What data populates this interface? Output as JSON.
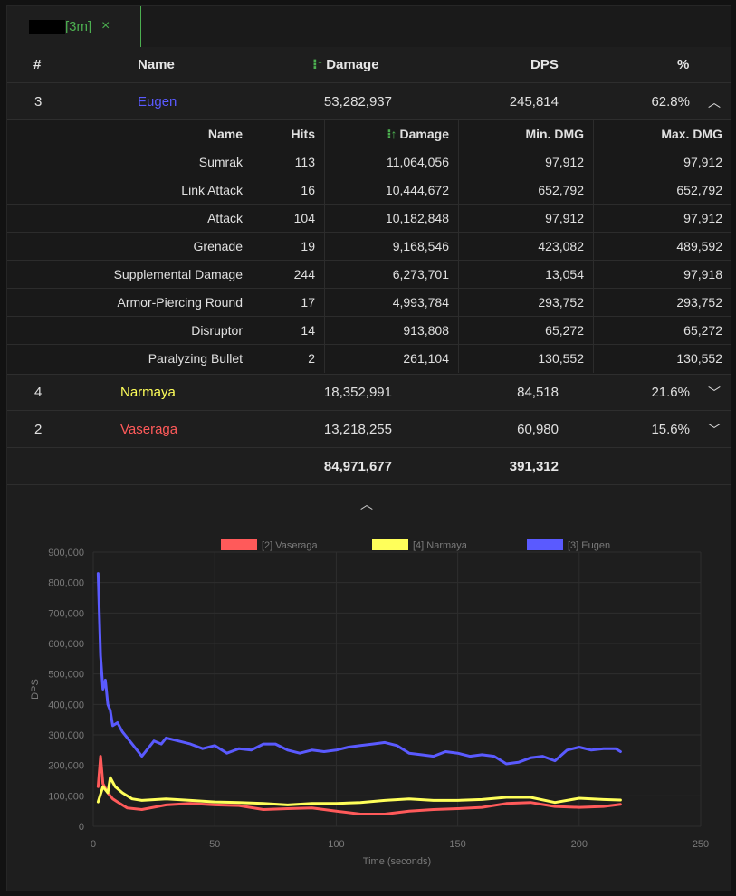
{
  "colors": {
    "accent": "#4caf50",
    "eugen": "#5a5aff",
    "narmaya": "#ffff5a",
    "vaseraga": "#ff5a5a"
  },
  "tab": {
    "label": "[3m]",
    "close_icon": "×"
  },
  "table": {
    "headers": {
      "rank": "#",
      "name": "Name",
      "damage": "Damage",
      "dps": "DPS",
      "percent": "%"
    },
    "sort_icon": "↑",
    "rows": [
      {
        "rank": "3",
        "name": "Eugen",
        "damage": "53,282,937",
        "dps": "245,814",
        "percent": "62.8%",
        "expanded": true
      },
      {
        "rank": "4",
        "name": "Narmaya",
        "damage": "18,352,991",
        "dps": "84,518",
        "percent": "21.6%",
        "expanded": false
      },
      {
        "rank": "2",
        "name": "Vaseraga",
        "damage": "13,218,255",
        "dps": "60,980",
        "percent": "15.6%",
        "expanded": false
      }
    ],
    "totals": {
      "damage": "84,971,677",
      "dps": "391,312"
    }
  },
  "skills": {
    "headers": {
      "name": "Name",
      "hits": "Hits",
      "damage": "Damage",
      "min": "Min. DMG",
      "max": "Max. DMG"
    },
    "rows": [
      {
        "name": "Sumrak",
        "hits": "113",
        "damage": "11,064,056",
        "min": "97,912",
        "max": "97,912"
      },
      {
        "name": "Link Attack",
        "hits": "16",
        "damage": "10,444,672",
        "min": "652,792",
        "max": "652,792"
      },
      {
        "name": "Attack",
        "hits": "104",
        "damage": "10,182,848",
        "min": "97,912",
        "max": "97,912"
      },
      {
        "name": "Grenade",
        "hits": "19",
        "damage": "9,168,546",
        "min": "423,082",
        "max": "489,592"
      },
      {
        "name": "Supplemental Damage",
        "hits": "244",
        "damage": "6,273,701",
        "min": "13,054",
        "max": "97,918"
      },
      {
        "name": "Armor-Piercing Round",
        "hits": "17",
        "damage": "4,993,784",
        "min": "293,752",
        "max": "293,752"
      },
      {
        "name": "Disruptor",
        "hits": "14",
        "damage": "913,808",
        "min": "65,272",
        "max": "65,272"
      },
      {
        "name": "Paralyzing Bullet",
        "hits": "2",
        "damage": "261,104",
        "min": "130,552",
        "max": "130,552"
      }
    ]
  },
  "chart_data": {
    "type": "line",
    "xlabel": "Time (seconds)",
    "ylabel": "DPS",
    "xlim": [
      0,
      250
    ],
    "ylim": [
      0,
      900000
    ],
    "x_ticks": [
      "0",
      "50",
      "100",
      "150",
      "200",
      "250"
    ],
    "y_ticks": [
      "0",
      "100,000",
      "200,000",
      "300,000",
      "400,000",
      "500,000",
      "600,000",
      "700,000",
      "800,000",
      "900,000"
    ],
    "legend_position": "top",
    "grid": true,
    "series": [
      {
        "name": "[2] Vaseraga",
        "color": "#ff5a5a",
        "x": [
          2,
          3,
          4,
          6,
          8,
          10,
          14,
          20,
          30,
          40,
          50,
          60,
          70,
          80,
          90,
          100,
          110,
          120,
          130,
          140,
          150,
          160,
          170,
          180,
          190,
          200,
          210,
          217
        ],
        "values": [
          130000,
          230000,
          140000,
          110000,
          90000,
          80000,
          60000,
          55000,
          70000,
          75000,
          70000,
          68000,
          55000,
          58000,
          60000,
          50000,
          40000,
          40000,
          50000,
          55000,
          58000,
          62000,
          75000,
          78000,
          65000,
          62000,
          65000,
          72000
        ]
      },
      {
        "name": "[4] Narmaya",
        "color": "#ffff5a",
        "x": [
          2,
          4,
          6,
          7,
          9,
          12,
          16,
          20,
          30,
          40,
          50,
          60,
          70,
          80,
          90,
          100,
          110,
          120,
          130,
          140,
          150,
          160,
          170,
          180,
          190,
          200,
          210,
          217
        ],
        "values": [
          80000,
          130000,
          110000,
          160000,
          130000,
          110000,
          90000,
          85000,
          90000,
          85000,
          80000,
          78000,
          75000,
          70000,
          75000,
          75000,
          78000,
          85000,
          90000,
          85000,
          85000,
          88000,
          95000,
          95000,
          78000,
          92000,
          88000,
          86000
        ]
      },
      {
        "name": "[3] Eugen",
        "color": "#5a5aff",
        "x": [
          2,
          3,
          4,
          5,
          6,
          7,
          8,
          10,
          12,
          15,
          18,
          20,
          25,
          28,
          30,
          35,
          40,
          45,
          50,
          55,
          60,
          65,
          70,
          75,
          80,
          85,
          90,
          95,
          100,
          105,
          110,
          115,
          120,
          125,
          130,
          135,
          140,
          145,
          150,
          155,
          160,
          165,
          170,
          175,
          180,
          185,
          190,
          195,
          200,
          205,
          210,
          215,
          217
        ],
        "values": [
          830000,
          560000,
          450000,
          480000,
          400000,
          380000,
          330000,
          340000,
          310000,
          280000,
          250000,
          230000,
          280000,
          270000,
          290000,
          280000,
          270000,
          255000,
          265000,
          240000,
          255000,
          250000,
          270000,
          270000,
          250000,
          240000,
          250000,
          245000,
          250000,
          260000,
          265000,
          270000,
          275000,
          265000,
          240000,
          235000,
          230000,
          245000,
          240000,
          230000,
          235000,
          230000,
          205000,
          210000,
          225000,
          230000,
          215000,
          250000,
          260000,
          250000,
          255000,
          255000,
          245000
        ]
      }
    ]
  }
}
